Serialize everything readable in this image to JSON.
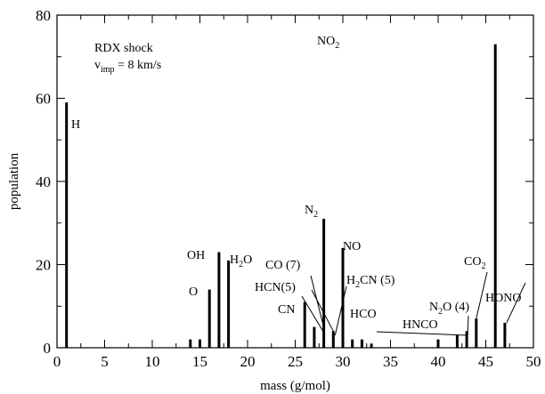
{
  "chart_data": {
    "type": "bar",
    "xlabel": "mass (g/mol)",
    "ylabel": "population",
    "xlim": [
      0,
      50
    ],
    "ylim": [
      0,
      80
    ],
    "x_ticks": [
      "0",
      "5",
      "10",
      "15",
      "20",
      "25",
      "30",
      "35",
      "40",
      "45",
      "50"
    ],
    "y_ticks": [
      "0",
      "20",
      "40",
      "60",
      "80"
    ],
    "grid": false,
    "legend": "none",
    "bar_color": "#000000",
    "bars": [
      {
        "x": 1,
        "y": 59
      },
      {
        "x": 14,
        "y": 2
      },
      {
        "x": 15,
        "y": 2
      },
      {
        "x": 16,
        "y": 14
      },
      {
        "x": 17,
        "y": 23
      },
      {
        "x": 18,
        "y": 21
      },
      {
        "x": 26,
        "y": 11
      },
      {
        "x": 27,
        "y": 5
      },
      {
        "x": 28,
        "y": 31
      },
      {
        "x": 29,
        "y": 4
      },
      {
        "x": 30,
        "y": 24
      },
      {
        "x": 31,
        "y": 2
      },
      {
        "x": 32,
        "y": 2
      },
      {
        "x": 33,
        "y": 1
      },
      {
        "x": 40,
        "y": 2
      },
      {
        "x": 42,
        "y": 3
      },
      {
        "x": 43,
        "y": 4
      },
      {
        "x": 44,
        "y": 7
      },
      {
        "x": 46,
        "y": 73
      },
      {
        "x": 47,
        "y": 6
      }
    ],
    "annotation_lines": [
      "RDX shock",
      "v",
      "imp",
      " = 8 km/s"
    ],
    "labels": [
      {
        "parts": [
          {
            "t": "H"
          }
        ]
      },
      {
        "parts": [
          {
            "t": "O"
          }
        ]
      },
      {
        "parts": [
          {
            "t": "OH"
          }
        ]
      },
      {
        "parts": [
          {
            "t": "H"
          },
          {
            "t": "2",
            "sub": true
          },
          {
            "t": "O"
          }
        ]
      },
      {
        "parts": [
          {
            "t": "N"
          },
          {
            "t": "2",
            "sub": true
          }
        ]
      },
      {
        "parts": [
          {
            "t": "CO (7)"
          }
        ]
      },
      {
        "parts": [
          {
            "t": "HCN(5)"
          }
        ]
      },
      {
        "parts": [
          {
            "t": "CN"
          }
        ]
      },
      {
        "parts": [
          {
            "t": "NO"
          }
        ]
      },
      {
        "parts": [
          {
            "t": "H"
          },
          {
            "t": "2",
            "sub": true
          },
          {
            "t": "CN (5)"
          }
        ]
      },
      {
        "parts": [
          {
            "t": "HCO"
          }
        ]
      },
      {
        "parts": [
          {
            "t": "NO"
          },
          {
            "t": "2",
            "sub": true
          }
        ]
      },
      {
        "parts": [
          {
            "t": "CO"
          },
          {
            "t": "2",
            "sub": true
          }
        ]
      },
      {
        "parts": [
          {
            "t": "N"
          },
          {
            "t": "2",
            "sub": true
          },
          {
            "t": "O (4)"
          }
        ]
      },
      {
        "parts": [
          {
            "t": "HNCO"
          }
        ]
      },
      {
        "parts": [
          {
            "t": "HONO"
          }
        ]
      }
    ]
  }
}
